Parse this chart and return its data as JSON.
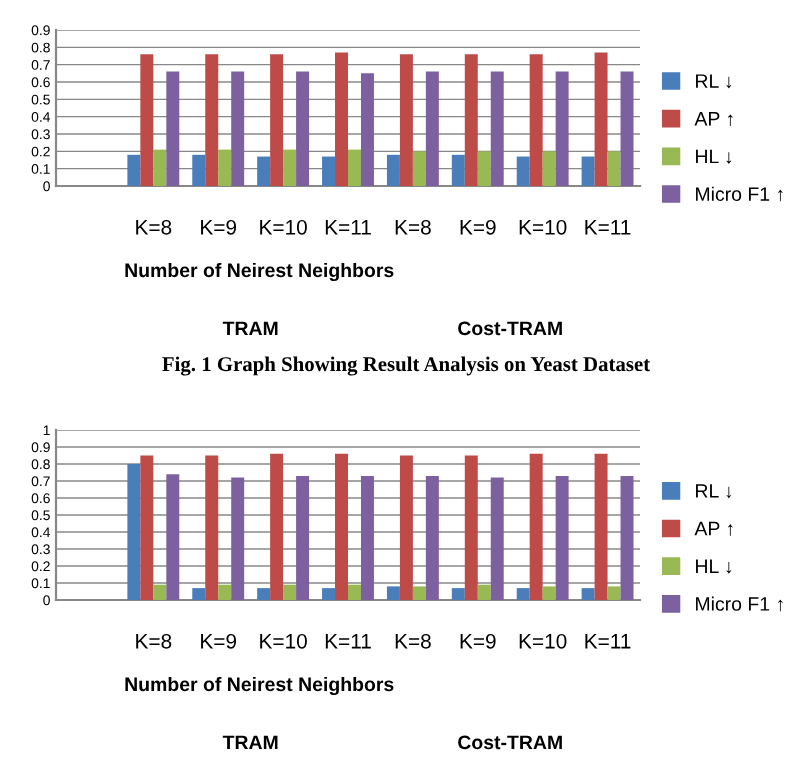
{
  "chart_data": [
    {
      "type": "bar",
      "categories": [
        null,
        "K=8",
        "K=9",
        "K=10",
        "K=11",
        "K=8",
        "K=9",
        "K=10",
        "K=11"
      ],
      "ylim": [
        0,
        0.9
      ],
      "yticks": [
        0,
        0.1,
        0.2,
        0.3,
        0.4,
        0.5,
        0.6,
        0.7,
        0.8,
        0.9
      ],
      "grid": "y",
      "legend": "right",
      "series": [
        {
          "name": "RL ↓",
          "color": "#4a7ebb",
          "values": [
            null,
            0.18,
            0.18,
            0.17,
            0.17,
            0.18,
            0.18,
            0.17,
            0.17
          ]
        },
        {
          "name": "AP ↑",
          "color": "#be4b48",
          "values": [
            null,
            0.76,
            0.76,
            0.76,
            0.77,
            0.76,
            0.76,
            0.76,
            0.77
          ]
        },
        {
          "name": "HL ↓",
          "color": "#98b954",
          "values": [
            null,
            0.21,
            0.21,
            0.21,
            0.21,
            0.2,
            0.2,
            0.2,
            0.2
          ]
        },
        {
          "name": "Micro F1 ↑",
          "color": "#7d60a0",
          "values": [
            null,
            0.66,
            0.66,
            0.66,
            0.65,
            0.66,
            0.66,
            0.66,
            0.66
          ]
        }
      ],
      "annotations": [
        "Number of Neirest Neighbors",
        "TRAM",
        "Cost-TRAM",
        "Fig. 1 Graph Showing Result Analysis on Yeast Dataset"
      ]
    },
    {
      "type": "bar",
      "categories": [
        null,
        "K=8",
        "K=9",
        "K=10",
        "K=11",
        "K=8",
        "K=9",
        "K=10",
        "K=11"
      ],
      "ylim": [
        0,
        1
      ],
      "yticks": [
        0,
        0.1,
        0.2,
        0.3,
        0.4,
        0.5,
        0.6,
        0.7,
        0.8,
        0.9,
        1
      ],
      "grid": "y",
      "legend": "right",
      "series": [
        {
          "name": "RL ↓",
          "color": "#4a7ebb",
          "values": [
            null,
            0.8,
            0.07,
            0.07,
            0.07,
            0.08,
            0.07,
            0.07,
            0.07
          ]
        },
        {
          "name": "AP ↑",
          "color": "#be4b48",
          "values": [
            null,
            0.85,
            0.85,
            0.86,
            0.86,
            0.85,
            0.85,
            0.86,
            0.86
          ]
        },
        {
          "name": "HL ↓",
          "color": "#98b954",
          "values": [
            null,
            0.09,
            0.09,
            0.09,
            0.09,
            0.08,
            0.09,
            0.08,
            0.08
          ]
        },
        {
          "name": "Micro F1 ↑",
          "color": "#7d60a0",
          "values": [
            null,
            0.74,
            0.72,
            0.73,
            0.73,
            0.73,
            0.72,
            0.73,
            0.73
          ]
        }
      ],
      "annotations": [
        "Number of Neirest Neighbors",
        "TRAM",
        "Cost-TRAM"
      ]
    }
  ]
}
